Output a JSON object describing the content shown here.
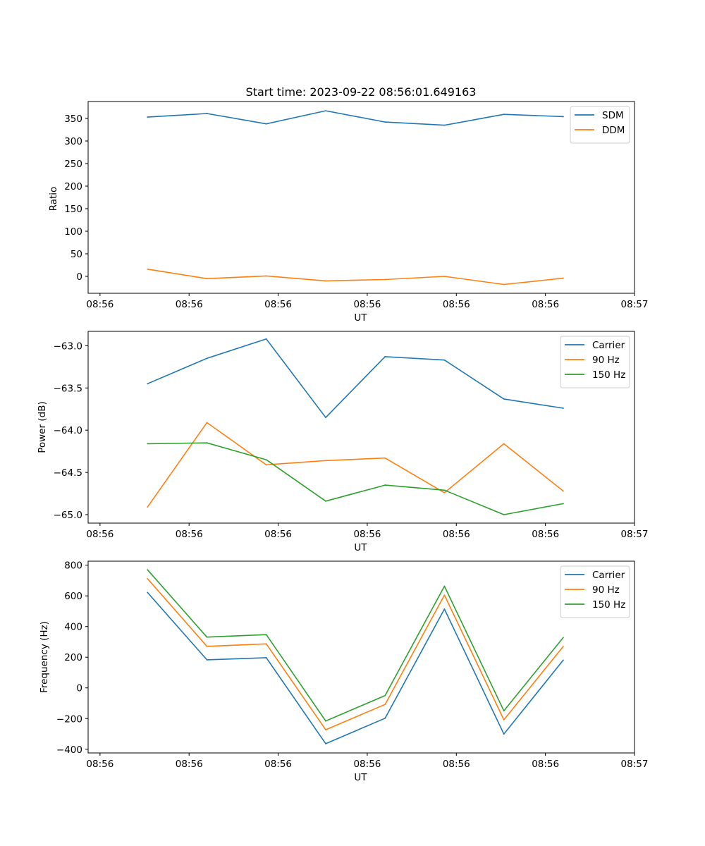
{
  "figure_title": "Start time: 2023-09-22 08:56:01.649163",
  "chart_data": [
    {
      "type": "line",
      "ylabel": "Ratio",
      "xlabel": "UT",
      "x": [
        1,
        2,
        3,
        4,
        5,
        6,
        7,
        8
      ],
      "xlim": [
        0,
        9.2
      ],
      "xtick_values": [
        0.2,
        1.7,
        3.2,
        4.7,
        6.2,
        7.7,
        9.2
      ],
      "xtick_labels": [
        "08:56",
        "08:56",
        "08:56",
        "08:56",
        "08:56",
        "08:56",
        "08:57"
      ],
      "ylim": [
        -37.5,
        387.5
      ],
      "yticks": [
        0,
        50,
        100,
        150,
        200,
        250,
        300,
        350
      ],
      "ytick_labels": [
        "0",
        "50",
        "100",
        "150",
        "200",
        "250",
        "300",
        "350"
      ],
      "legend": "upper right",
      "series": [
        {
          "name": "SDM",
          "color": "#1f77b4",
          "values": [
            353,
            361,
            338,
            367,
            342,
            335,
            359,
            354
          ]
        },
        {
          "name": "DDM",
          "color": "#ff7f0e",
          "values": [
            16,
            -5,
            1,
            -10,
            -7,
            0,
            -18,
            -4
          ]
        }
      ]
    },
    {
      "type": "line",
      "ylabel": "Power (dB)",
      "xlabel": "UT",
      "x": [
        1,
        2,
        3,
        4,
        5,
        6,
        7,
        8
      ],
      "xlim": [
        0,
        9.2
      ],
      "xtick_values": [
        0.2,
        1.7,
        3.2,
        4.7,
        6.2,
        7.7,
        9.2
      ],
      "xtick_labels": [
        "08:56",
        "08:56",
        "08:56",
        "08:56",
        "08:56",
        "08:56",
        "08:57"
      ],
      "ylim": [
        -65.1,
        -62.83
      ],
      "yticks": [
        -65.0,
        -64.5,
        -64.0,
        -63.5,
        -63.0
      ],
      "ytick_labels": [
        "−65.0",
        "−64.5",
        "−64.0",
        "−63.5",
        "−63.0"
      ],
      "legend": "upper right",
      "series": [
        {
          "name": "Carrier",
          "color": "#1f77b4",
          "values": [
            -63.45,
            -63.15,
            -62.92,
            -63.85,
            -63.13,
            -63.17,
            -63.63,
            -63.74
          ]
        },
        {
          "name": "90 Hz",
          "color": "#ff7f0e",
          "values": [
            -64.91,
            -63.91,
            -64.41,
            -64.36,
            -64.33,
            -64.74,
            -64.16,
            -64.72
          ]
        },
        {
          "name": "150 Hz",
          "color": "#2ca02c",
          "values": [
            -64.16,
            -64.15,
            -64.35,
            -64.84,
            -64.65,
            -64.71,
            -65.0,
            -64.87
          ]
        }
      ]
    },
    {
      "type": "line",
      "ylabel": "Frequency (Hz)",
      "xlabel": "UT",
      "x": [
        1,
        2,
        3,
        4,
        5,
        6,
        7,
        8
      ],
      "xlim": [
        0,
        9.2
      ],
      "xtick_values": [
        0.2,
        1.7,
        3.2,
        4.7,
        6.2,
        7.7,
        9.2
      ],
      "xtick_labels": [
        "08:56",
        "08:56",
        "08:56",
        "08:56",
        "08:56",
        "08:56",
        "08:57"
      ],
      "ylim": [
        -424,
        826
      ],
      "yticks": [
        -400,
        -200,
        0,
        200,
        400,
        600,
        800
      ],
      "ytick_labels": [
        "−400",
        "−200",
        "0",
        "200",
        "400",
        "600",
        "800"
      ],
      "legend": "upper right",
      "series": [
        {
          "name": "Carrier",
          "color": "#1f77b4",
          "values": [
            622,
            183,
            197,
            -364,
            -198,
            514,
            -301,
            181
          ]
        },
        {
          "name": "90 Hz",
          "color": "#ff7f0e",
          "values": [
            712,
            271,
            287,
            -273,
            -108,
            605,
            -208,
            270
          ]
        },
        {
          "name": "150 Hz",
          "color": "#2ca02c",
          "values": [
            770,
            331,
            347,
            -216,
            -50,
            663,
            -149,
            328
          ]
        }
      ]
    }
  ]
}
